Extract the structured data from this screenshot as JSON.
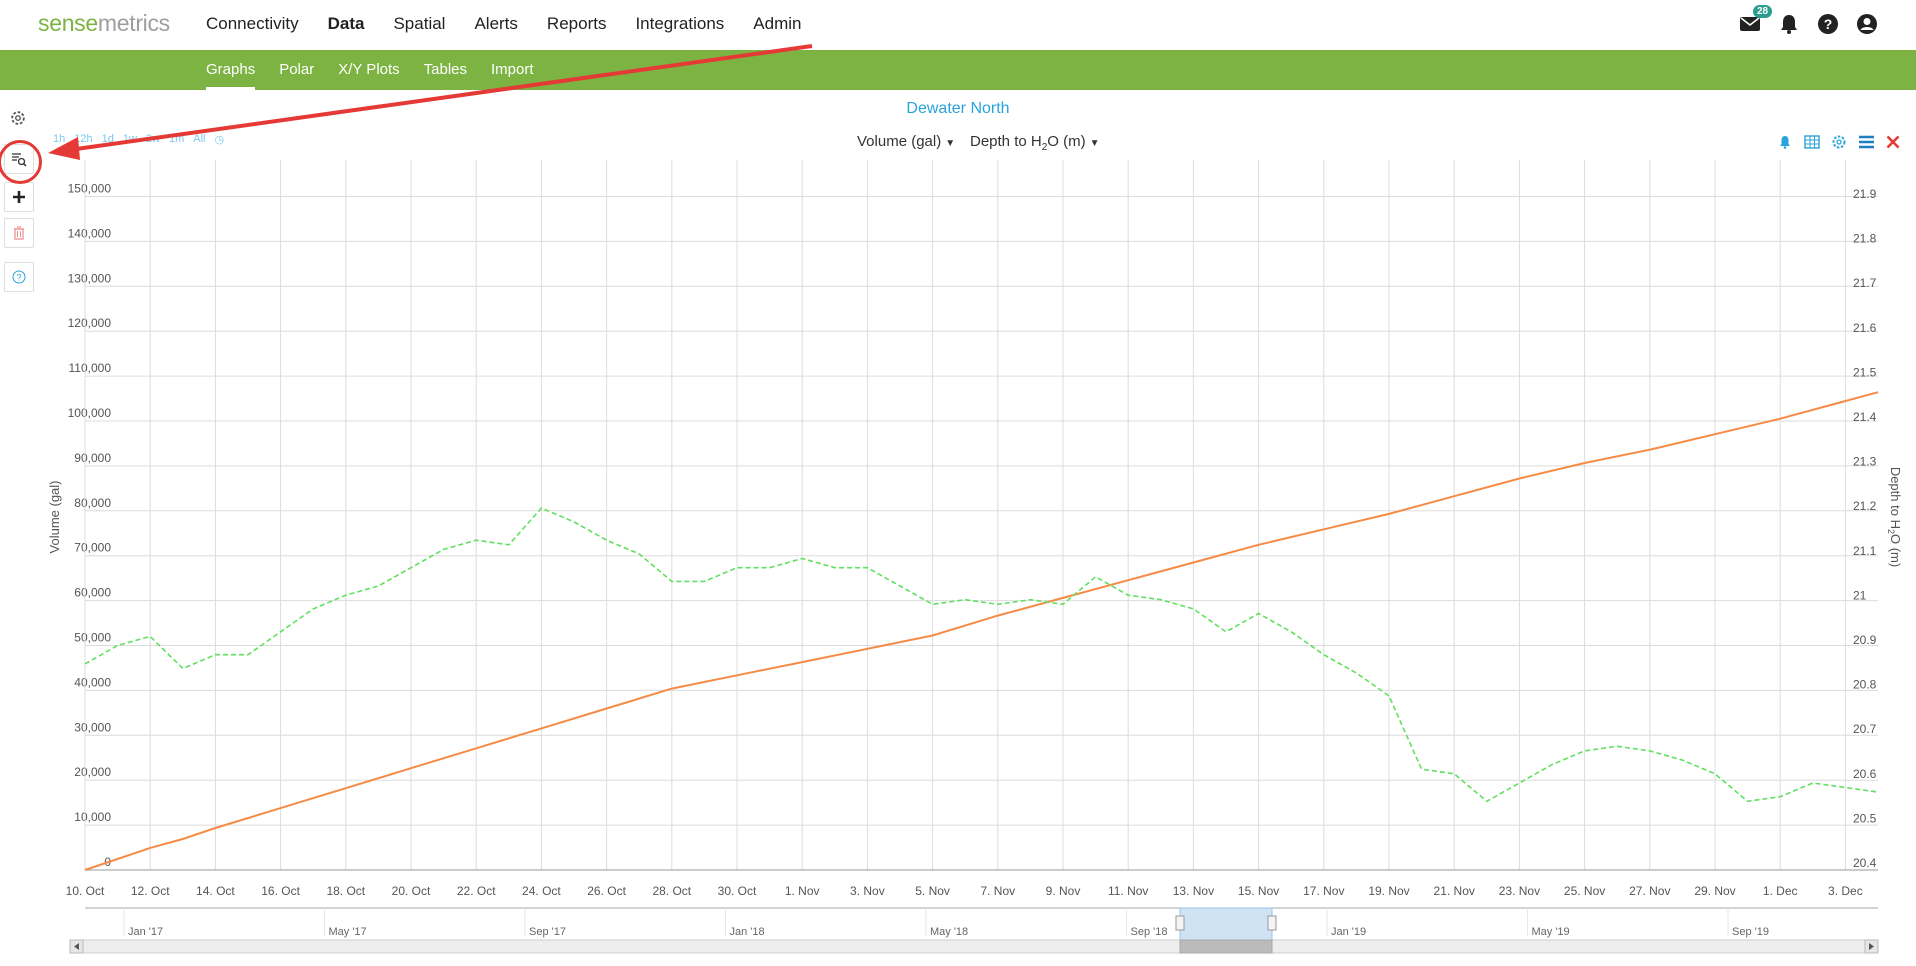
{
  "brand": {
    "part1": "sense",
    "part2": "metrics"
  },
  "nav": {
    "items": [
      "Connectivity",
      "Data",
      "Spatial",
      "Alerts",
      "Reports",
      "Integrations",
      "Admin"
    ],
    "active": "Data"
  },
  "mail_badge": "28",
  "icons": [
    "envelope-icon",
    "bell-icon",
    "help-icon",
    "user-icon"
  ],
  "subnav": {
    "items": [
      "Graphs",
      "Polar",
      "X/Y Plots",
      "Tables",
      "Import"
    ],
    "active": "Graphs"
  },
  "graph": {
    "title": "Dewater North",
    "time_ranges": [
      "1h",
      "12h",
      "1d",
      "1w",
      "2w",
      "1m",
      "All"
    ],
    "left_axis_select": "Volume (gal)",
    "right_axis_select": {
      "prefix": "Depth to H",
      "sub": "2",
      "suffix": "O (m)"
    }
  },
  "colors": {
    "green": "#7cb342",
    "accent": "#29a3d9",
    "volume_line": "#f58b45",
    "depth_line": "#5fe05f",
    "close": "#e53935"
  },
  "chart_data": {
    "type": "line",
    "x_label": "",
    "x_ticks": [
      "10. Oct",
      "12. Oct",
      "14. Oct",
      "16. Oct",
      "18. Oct",
      "20. Oct",
      "22. Oct",
      "24. Oct",
      "26. Oct",
      "28. Oct",
      "30. Oct",
      "1. Nov",
      "3. Nov",
      "5. Nov",
      "7. Nov",
      "9. Nov",
      "11. Nov",
      "13. Nov",
      "15. Nov",
      "17. Nov",
      "19. Nov",
      "21. Nov",
      "23. Nov",
      "25. Nov",
      "27. Nov",
      "29. Nov",
      "1. Dec",
      "3. Dec"
    ],
    "y_left": {
      "label": "Volume (gal)",
      "min": 0,
      "max": 160000,
      "ticks": [
        "0",
        "10,000",
        "20,000",
        "30,000",
        "40,000",
        "50,000",
        "60,000",
        "70,000",
        "80,000",
        "90,000",
        "100,000",
        "110,000",
        "120,000",
        "130,000",
        "140,000",
        "150,000"
      ]
    },
    "y_right": {
      "label_prefix": "Depth to H",
      "label_sub": "2",
      "label_suffix": "O (m)",
      "min": 20.4,
      "max": 21.95,
      "ticks": [
        "20.4",
        "20.5",
        "20.6",
        "20.7",
        "20.8",
        "20.9",
        "21",
        "21.1",
        "21.2",
        "21.3",
        "21.4",
        "21.5",
        "21.6",
        "21.7",
        "21.8",
        "21.9"
      ]
    },
    "series": [
      {
        "name": "Volume (gal)",
        "axis": "left",
        "style": "solid",
        "x": [
          0,
          2,
          3,
          4,
          6,
          8,
          10,
          12,
          14,
          16,
          18,
          20,
          22,
          24,
          26,
          28,
          30,
          32,
          34,
          36,
          38,
          40,
          42,
          44,
          46,
          48,
          50,
          52,
          54,
          55
        ],
        "values": [
          0,
          5000,
          7000,
          9500,
          14000,
          18500,
          23000,
          27500,
          32000,
          36500,
          41000,
          44000,
          47000,
          50000,
          53000,
          57500,
          61500,
          65500,
          69500,
          73500,
          77000,
          80500,
          84500,
          88500,
          92000,
          95000,
          98500,
          102000,
          106000,
          108000
        ]
      },
      {
        "name": "Depth to H2O (m)",
        "axis": "right",
        "style": "dashed",
        "x": [
          0,
          1,
          2,
          3,
          4,
          5,
          6,
          7,
          8,
          9,
          10,
          11,
          12,
          13,
          14,
          15,
          16,
          17,
          18,
          19,
          20,
          21,
          22,
          23,
          24,
          25,
          26,
          27,
          28,
          29,
          30,
          31,
          32,
          33,
          34,
          35,
          36,
          37,
          38,
          39,
          40,
          41,
          42,
          43,
          44,
          45,
          46,
          47,
          48,
          49,
          50,
          51,
          52,
          53,
          54,
          55
        ],
        "values": [
          20.85,
          20.89,
          20.91,
          20.84,
          20.87,
          20.87,
          20.92,
          20.97,
          21.0,
          21.02,
          21.06,
          21.1,
          21.12,
          21.11,
          21.19,
          21.16,
          21.12,
          21.09,
          21.03,
          21.03,
          21.06,
          21.06,
          21.08,
          21.06,
          21.06,
          21.02,
          20.98,
          20.99,
          20.98,
          20.99,
          20.98,
          21.04,
          21.0,
          20.99,
          20.97,
          20.92,
          20.96,
          20.92,
          20.87,
          20.83,
          20.78,
          20.62,
          20.61,
          20.55,
          20.59,
          20.63,
          20.66,
          20.67,
          20.66,
          20.64,
          20.61,
          20.55,
          20.56,
          20.59,
          20.58,
          20.57
        ]
      }
    ],
    "navigator": {
      "labels": [
        "Jan '17",
        "May '17",
        "Sep '17",
        "Jan '18",
        "May '18",
        "Sep '18",
        "Jan '19",
        "May '19",
        "Sep '19"
      ]
    }
  }
}
